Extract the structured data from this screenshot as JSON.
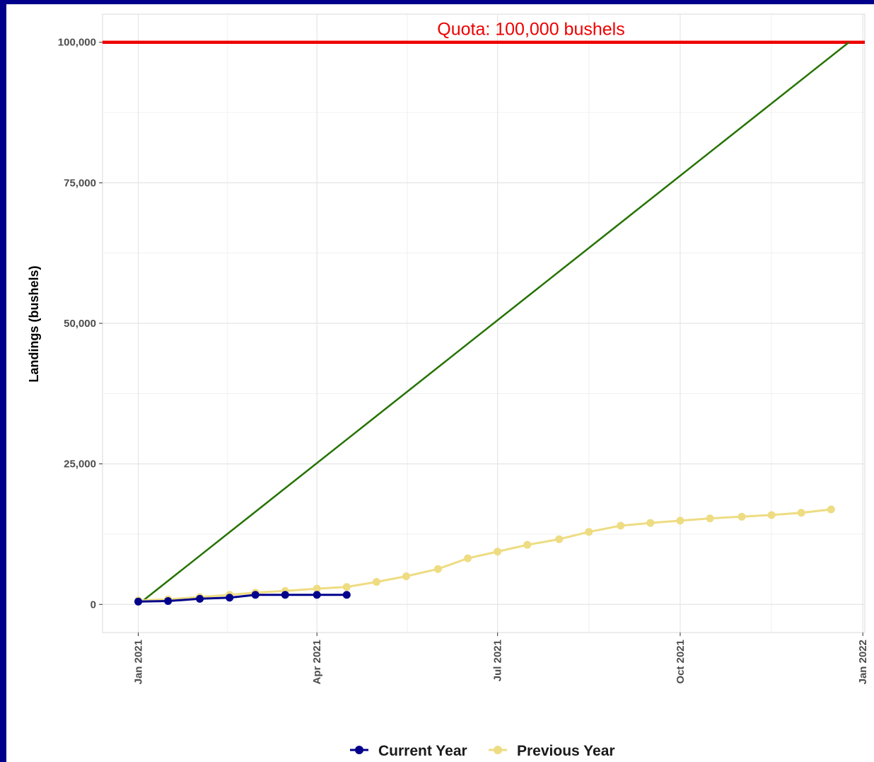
{
  "chart_data": {
    "type": "line",
    "title": "",
    "xlabel": "",
    "ylabel": "Landings (bushels)",
    "x_ticks": [
      "Jan 2021",
      "Apr 2021",
      "Jul 2021",
      "Oct 2021",
      "Jan 2022"
    ],
    "y_ticks": [
      "0",
      "25,000",
      "50,000",
      "75,000",
      "100,000"
    ],
    "ylim": [
      -5000,
      105000
    ],
    "xlim": [
      "2020-12-14",
      "2022-01-02"
    ],
    "grid": true,
    "legend_position": "bottom",
    "quota": {
      "value": 100000,
      "label": "Quota: 100,000 bushels",
      "color": "#ee0000"
    },
    "target_line": {
      "color": "#267300",
      "from": {
        "x": "2021-01-01",
        "y": 0
      },
      "to": {
        "x": "2021-12-25",
        "y": 100000
      }
    },
    "series": [
      {
        "name": "Current Year",
        "color": "#00008b",
        "x": [
          "2021-01-01",
          "2021-01-16",
          "2021-02-01",
          "2021-02-16",
          "2021-03-01",
          "2021-03-16",
          "2021-04-01",
          "2021-04-16"
        ],
        "values": [
          500,
          600,
          1000,
          1200,
          1700,
          1700,
          1700,
          1700
        ]
      },
      {
        "name": "Previous Year",
        "color": "#eedc82",
        "x": [
          "2021-01-01",
          "2021-01-16",
          "2021-02-01",
          "2021-02-16",
          "2021-03-01",
          "2021-03-16",
          "2021-04-01",
          "2021-04-16",
          "2021-05-01",
          "2021-05-16",
          "2021-06-01",
          "2021-06-16",
          "2021-07-01",
          "2021-07-16",
          "2021-08-01",
          "2021-08-16",
          "2021-09-01",
          "2021-09-16",
          "2021-10-01",
          "2021-10-16",
          "2021-11-01",
          "2021-11-16",
          "2021-12-01",
          "2021-12-16"
        ],
        "values": [
          700,
          900,
          1300,
          1700,
          2100,
          2400,
          2800,
          3100,
          4000,
          5000,
          6300,
          8200,
          9400,
          10600,
          11600,
          12900,
          14000,
          14500,
          14900,
          15300,
          15600,
          15900,
          16300,
          16900
        ]
      }
    ]
  }
}
